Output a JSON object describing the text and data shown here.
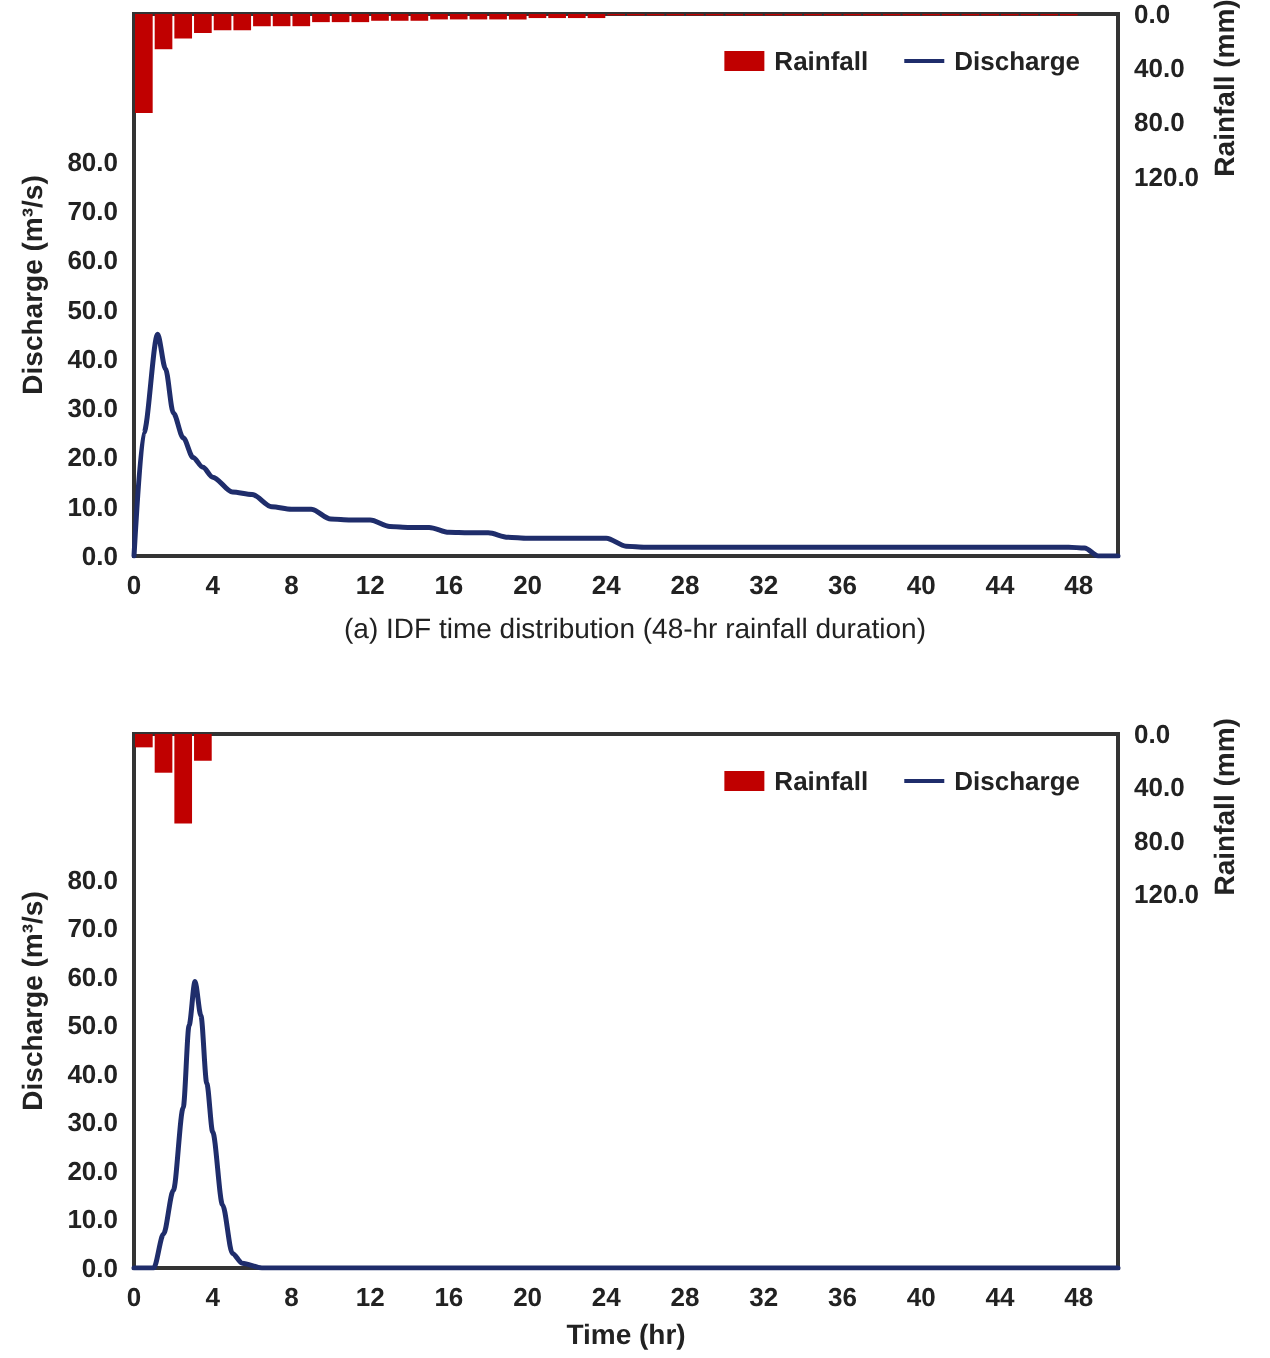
{
  "chart_data": [
    {
      "type": "line",
      "title": "(a) IDF time distribution (48-hr rainfall duration)",
      "ylabel": "Discharge (m³/s)",
      "y2label": "Rainfall (mm)",
      "xlim": [
        0,
        50
      ],
      "xticks": [
        0,
        4,
        8,
        12,
        16,
        20,
        24,
        28,
        32,
        36,
        40,
        44,
        48
      ],
      "ylim": [
        0,
        110
      ],
      "yticks": [
        {
          "value": 0,
          "label": "0.0"
        },
        {
          "value": 10,
          "label": "10.0"
        },
        {
          "value": 20,
          "label": "20.0"
        },
        {
          "value": 30,
          "label": "30.0"
        },
        {
          "value": 40,
          "label": "40.0"
        },
        {
          "value": 50,
          "label": "50.0"
        },
        {
          "value": 60,
          "label": "60.0"
        },
        {
          "value": 70,
          "label": "70.0"
        },
        {
          "value": 80,
          "label": "80.0"
        }
      ],
      "y2lim": [
        400,
        0
      ],
      "y2ticks": [
        {
          "value": 0,
          "label": "0.0"
        },
        {
          "value": 40,
          "label": "40.0"
        },
        {
          "value": 80,
          "label": "80.0"
        },
        {
          "value": 120,
          "label": "120.0"
        }
      ],
      "grid": false,
      "legend": "top right",
      "marker": "none",
      "line_style": "solid",
      "series": [
        {
          "name": "Rainfall",
          "type": "bar",
          "axis": "y2",
          "color": "#c00000",
          "x": [
            0.5,
            1.5,
            2.5,
            3.5,
            4.5,
            5.5,
            6.5,
            7.5,
            8.5,
            9.5,
            10.5,
            11.5,
            12.5,
            13.5,
            14.5,
            15.5,
            16.5,
            17.5,
            18.5,
            19.5,
            20.5,
            21.5,
            22.5,
            23.5,
            24.5,
            25.5,
            26.5,
            27.5,
            28.5,
            29.5,
            30.5,
            31.5,
            32.5,
            33.5,
            34.5,
            35.5,
            36.5,
            37.5,
            38.5,
            39.5,
            40.5,
            41.5,
            42.5,
            43.5,
            44.5,
            45.5,
            46.5,
            47.5
          ],
          "values": [
            73,
            26,
            18,
            14,
            12,
            12,
            9,
            9,
            9,
            6,
            6,
            6,
            5,
            5,
            5,
            4,
            4,
            4,
            4,
            4,
            3,
            3,
            3,
            3,
            1,
            1,
            1,
            1,
            1,
            1,
            1,
            1,
            1,
            1,
            1,
            1,
            1,
            1,
            1,
            1,
            1,
            1,
            1,
            1,
            1,
            1,
            1,
            1
          ]
        },
        {
          "name": "Discharge",
          "color": "#1f2d6b",
          "x": [
            0,
            0.5,
            1.2,
            1.6,
            2,
            2.5,
            3,
            3.5,
            4,
            5,
            6,
            7,
            8,
            9,
            10,
            11,
            12,
            13,
            14,
            15,
            16,
            17,
            18,
            19,
            20,
            22,
            24,
            25,
            26,
            30,
            36,
            42,
            47.5,
            48.3,
            49,
            50
          ],
          "values": [
            0,
            25,
            45,
            38,
            29,
            24,
            20,
            18,
            16,
            13,
            12.5,
            10,
            9.5,
            9.5,
            7.5,
            7.3,
            7.3,
            6,
            5.8,
            5.8,
            4.8,
            4.7,
            4.7,
            3.8,
            3.6,
            3.6,
            3.6,
            2,
            1.8,
            1.8,
            1.8,
            1.8,
            1.8,
            1.6,
            0,
            0
          ]
        }
      ]
    },
    {
      "type": "line",
      "xlabel": "Time (hr)",
      "ylabel": "Discharge (m³/s)",
      "y2label": "Rainfall (mm)",
      "xlim": [
        0,
        50
      ],
      "xticks": [
        0,
        4,
        8,
        12,
        16,
        20,
        24,
        28,
        32,
        36,
        40,
        44,
        48
      ],
      "ylim": [
        0,
        110
      ],
      "yticks": [
        {
          "value": 0,
          "label": "0.0"
        },
        {
          "value": 10,
          "label": "10.0"
        },
        {
          "value": 20,
          "label": "20.0"
        },
        {
          "value": 30,
          "label": "30.0"
        },
        {
          "value": 40,
          "label": "40.0"
        },
        {
          "value": 50,
          "label": "50.0"
        },
        {
          "value": 60,
          "label": "60.0"
        },
        {
          "value": 70,
          "label": "70.0"
        },
        {
          "value": 80,
          "label": "80.0"
        }
      ],
      "y2lim": [
        400,
        0
      ],
      "y2ticks": [
        {
          "value": 0,
          "label": "0.0"
        },
        {
          "value": 40,
          "label": "40.0"
        },
        {
          "value": 80,
          "label": "80.0"
        },
        {
          "value": 120,
          "label": "120.0"
        }
      ],
      "grid": false,
      "legend": "top right",
      "marker": "none",
      "line_style": "solid",
      "series": [
        {
          "name": "Rainfall",
          "type": "bar",
          "axis": "y2",
          "color": "#c00000",
          "x": [
            0.5,
            1.5,
            2.5,
            3.5
          ],
          "values": [
            10,
            29,
            67,
            20
          ]
        },
        {
          "name": "Discharge",
          "color": "#1f2d6b",
          "x": [
            0,
            1,
            1.5,
            2,
            2.5,
            2.8,
            3.1,
            3.4,
            3.7,
            4,
            4.5,
            5,
            5.5,
            6.5,
            50
          ],
          "values": [
            0,
            0,
            7,
            16,
            33,
            50,
            59,
            52,
            38,
            28,
            13,
            3,
            1,
            0,
            0
          ]
        }
      ]
    }
  ]
}
